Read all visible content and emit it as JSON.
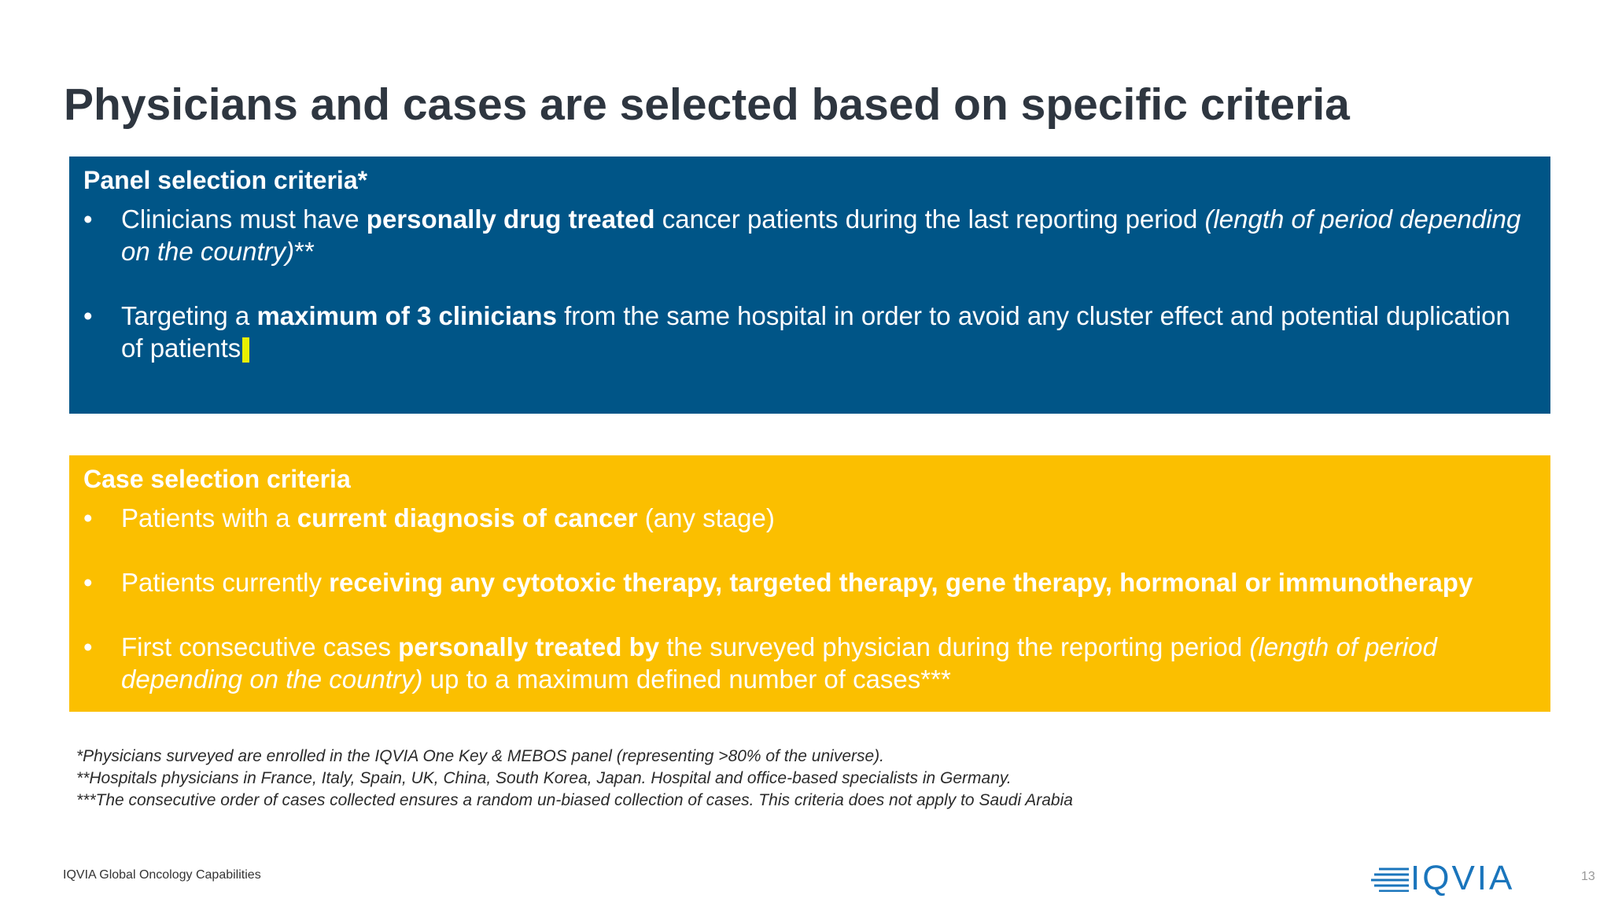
{
  "title": "Physicians and cases are selected based on specific criteria",
  "panel": {
    "heading": "Panel selection criteria*",
    "bullets": [
      [
        "Clinicians must have ",
        "personally drug treated",
        " cancer patients during the last reporting period ",
        "(length of period depending on the country)",
        "**"
      ],
      [
        "Targeting a ",
        "maximum of 3 clinicians",
        " from the same hospital in order to avoid any cluster effect and potential duplication of patients"
      ]
    ]
  },
  "case": {
    "heading": "Case selection criteria",
    "bullets": [
      [
        "Patients with a ",
        "current diagnosis of cancer",
        " (any stage)"
      ],
      [
        "Patients currently ",
        "receiving any cytotoxic therapy, targeted therapy, gene therapy, hormonal or immunotherapy"
      ],
      [
        "First consecutive cases ",
        "personally treated by",
        " the surveyed physician during the reporting period ",
        "(length of period depending on the country)",
        " up to a maximum defined number of cases***"
      ]
    ]
  },
  "footnotes": [
    "*Physicians surveyed are enrolled in the IQVIA One Key & MEBOS panel (representing >80% of the universe).",
    "**Hospitals physicians in France, Italy, Spain, UK, China, South Korea, Japan. Hospital and office-based specialists in Germany.",
    "***The consecutive order of cases collected ensures a random un-biased collection of cases. This criteria does not apply to Saudi Arabia"
  ],
  "footer": "IQVIA Global Oncology Capabilities",
  "logo": "IQVIA",
  "page_number": "13"
}
